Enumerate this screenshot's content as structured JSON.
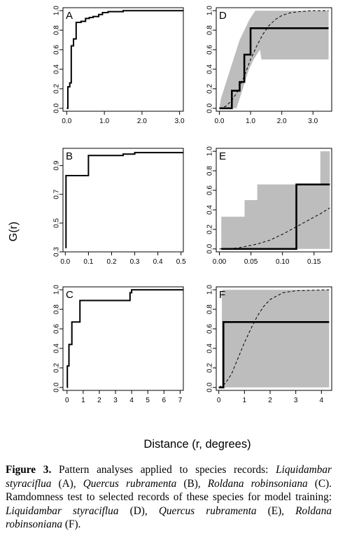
{
  "figure": {
    "ylabel": "G(r)",
    "xlabel": "Distance (r, degrees)"
  },
  "caption": {
    "label": "Figure 3.",
    "segments": [
      {
        "text": " Pattern analyses applied to species records: ",
        "italic": false
      },
      {
        "text": "Liquidambar styraciflua",
        "italic": true
      },
      {
        "text": " (A), ",
        "italic": false
      },
      {
        "text": "Quercus rubramenta",
        "italic": true
      },
      {
        "text": " (B), ",
        "italic": false
      },
      {
        "text": "Roldana robinsoniana",
        "italic": true
      },
      {
        "text": " (C). Ramdomness test to selected records of these species for model training: ",
        "italic": false
      },
      {
        "text": "Liquidambar styraciflua",
        "italic": true
      },
      {
        "text": " (D), ",
        "italic": false
      },
      {
        "text": "Quercus rubramenta",
        "italic": true
      },
      {
        "text": " (E), ",
        "italic": false
      },
      {
        "text": "Roldana robinsoniana",
        "italic": true
      },
      {
        "text": " (F).",
        "italic": false
      }
    ]
  },
  "chart_data": [
    {
      "panel": "A",
      "type": "line",
      "xlim": [
        -0.1,
        3.1
      ],
      "ylim": [
        -0.03,
        1.03
      ],
      "xticks": [
        0.0,
        1.0,
        2.0,
        3.0
      ],
      "xtick_labels": [
        "0.0",
        "1.0",
        "2.0",
        "3.0"
      ],
      "yticks": [
        0.0,
        0.2,
        0.4,
        0.6,
        0.8,
        1.0
      ],
      "ytick_labels": [
        "0.0",
        "0.2",
        "0.4",
        "0.6",
        "0.8",
        "1.0"
      ],
      "series": [
        {
          "style": "step",
          "points": [
            [
              0,
              0.0
            ],
            [
              0.03,
              0.22
            ],
            [
              0.08,
              0.26
            ],
            [
              0.12,
              0.64
            ],
            [
              0.18,
              0.71
            ],
            [
              0.25,
              0.88
            ],
            [
              0.38,
              0.89
            ],
            [
              0.5,
              0.92
            ],
            [
              0.6,
              0.93
            ],
            [
              0.7,
              0.94
            ],
            [
              0.85,
              0.96
            ],
            [
              0.95,
              0.98
            ],
            [
              1.1,
              0.99
            ],
            [
              1.5,
              1.0
            ],
            [
              3.1,
              1.0
            ]
          ]
        }
      ]
    },
    {
      "panel": "B",
      "type": "line",
      "xlim": [
        -0.01,
        0.51
      ],
      "ylim": [
        0.3,
        1.02
      ],
      "xticks": [
        0.0,
        0.1,
        0.2,
        0.3,
        0.4,
        0.5
      ],
      "xtick_labels": [
        "0.0",
        "0.1",
        "0.2",
        "0.3",
        "0.4",
        "0.5"
      ],
      "yticks": [
        0.3,
        0.5,
        0.7,
        0.9
      ],
      "ytick_labels": [
        "0.3",
        "0.5",
        "0.7",
        "0.9"
      ],
      "series": [
        {
          "style": "step",
          "points": [
            [
              0,
              0.33
            ],
            [
              0.003,
              0.83
            ],
            [
              0.1,
              0.97
            ],
            [
              0.2,
              0.97
            ],
            [
              0.25,
              0.98
            ],
            [
              0.3,
              0.99
            ],
            [
              0.51,
              0.99
            ]
          ]
        }
      ]
    },
    {
      "panel": "C",
      "type": "line",
      "xlim": [
        -0.25,
        7.2
      ],
      "ylim": [
        -0.03,
        1.03
      ],
      "xticks": [
        0,
        1,
        2,
        3,
        4,
        5,
        6,
        7
      ],
      "xtick_labels": [
        "0",
        "1",
        "2",
        "3",
        "4",
        "5",
        "6",
        "7"
      ],
      "yticks": [
        0.0,
        0.2,
        0.4,
        0.6,
        0.8,
        1.0
      ],
      "ytick_labels": [
        "0.0",
        "0.2",
        "0.4",
        "0.6",
        "0.8",
        "1.0"
      ],
      "series": [
        {
          "style": "step",
          "points": [
            [
              0,
              0.0
            ],
            [
              0.02,
              0.22
            ],
            [
              0.12,
              0.44
            ],
            [
              0.3,
              0.67
            ],
            [
              0.8,
              0.89
            ],
            [
              3.8,
              0.89
            ],
            [
              3.9,
              0.97
            ],
            [
              4.0,
              1.0
            ],
            [
              7.2,
              1.0
            ]
          ]
        }
      ]
    },
    {
      "panel": "D",
      "type": "area",
      "xlim": [
        -0.1,
        3.6
      ],
      "ylim": [
        -0.03,
        1.03
      ],
      "xticks": [
        0.0,
        1.0,
        2.0,
        3.0
      ],
      "xtick_labels": [
        "0.0",
        "1.0",
        "2.0",
        "3.0"
      ],
      "yticks": [
        0.0,
        0.2,
        0.4,
        0.6,
        0.8,
        1.0
      ],
      "ytick_labels": [
        "0.0",
        "0.2",
        "0.4",
        "0.6",
        "0.8",
        "1.0"
      ],
      "envelope": {
        "upper": [
          [
            0,
            0.0
          ],
          [
            0.05,
            0.1
          ],
          [
            0.15,
            0.2
          ],
          [
            0.25,
            0.3
          ],
          [
            0.35,
            0.4
          ],
          [
            0.45,
            0.5
          ],
          [
            0.55,
            0.6
          ],
          [
            0.65,
            0.7
          ],
          [
            0.8,
            0.8
          ],
          [
            0.95,
            0.9
          ],
          [
            1.15,
            1.0
          ],
          [
            3.5,
            1.0
          ]
        ],
        "lower": [
          [
            0,
            0.0
          ],
          [
            0.55,
            0.0
          ],
          [
            0.65,
            0.1
          ],
          [
            0.75,
            0.2
          ],
          [
            0.85,
            0.3
          ],
          [
            0.95,
            0.4
          ],
          [
            1.1,
            0.5
          ],
          [
            1.3,
            0.6
          ],
          [
            1.35,
            0.5
          ],
          [
            3.5,
            0.5
          ]
        ]
      },
      "series": [
        {
          "style": "step",
          "points": [
            [
              0,
              0.0
            ],
            [
              0.4,
              0.0
            ],
            [
              0.4,
              0.18
            ],
            [
              0.65,
              0.18
            ],
            [
              0.65,
              0.27
            ],
            [
              0.8,
              0.27
            ],
            [
              0.8,
              0.55
            ],
            [
              1.0,
              0.55
            ],
            [
              1.0,
              0.82
            ],
            [
              3.5,
              0.82
            ]
          ]
        },
        {
          "style": "dashed",
          "points": [
            [
              0,
              0.0
            ],
            [
              0.2,
              0.02
            ],
            [
              0.4,
              0.08
            ],
            [
              0.6,
              0.18
            ],
            [
              0.8,
              0.33
            ],
            [
              1.0,
              0.5
            ],
            [
              1.2,
              0.64
            ],
            [
              1.4,
              0.76
            ],
            [
              1.6,
              0.85
            ],
            [
              1.8,
              0.91
            ],
            [
              2.0,
              0.95
            ],
            [
              2.3,
              0.98
            ],
            [
              2.6,
              0.99
            ],
            [
              3.0,
              1.0
            ],
            [
              3.5,
              1.0
            ]
          ]
        }
      ]
    },
    {
      "panel": "E",
      "type": "area",
      "xlim": [
        -0.005,
        0.178
      ],
      "ylim": [
        -0.03,
        1.03
      ],
      "xticks": [
        0.0,
        0.05,
        0.1,
        0.15
      ],
      "xtick_labels": [
        "0.00",
        "0.05",
        "0.10",
        "0.15"
      ],
      "yticks": [
        0.0,
        0.2,
        0.4,
        0.6,
        0.8,
        1.0
      ],
      "ytick_labels": [
        "0.0",
        "0.2",
        "0.4",
        "0.6",
        "0.8",
        "1.0"
      ],
      "envelope": {
        "upper": [
          [
            0.003,
            0.33
          ],
          [
            0.04,
            0.33
          ],
          [
            0.04,
            0.5
          ],
          [
            0.06,
            0.5
          ],
          [
            0.06,
            0.66
          ],
          [
            0.16,
            0.66
          ],
          [
            0.16,
            1.0
          ],
          [
            0.175,
            1.0
          ]
        ],
        "lower": [
          [
            0.003,
            0.0
          ],
          [
            0.175,
            0.0
          ]
        ]
      },
      "series": [
        {
          "style": "step",
          "points": [
            [
              0.003,
              0.0
            ],
            [
              0.122,
              0.0
            ],
            [
              0.122,
              0.66
            ],
            [
              0.175,
              0.66
            ]
          ]
        },
        {
          "style": "dashed",
          "points": [
            [
              0,
              0.0
            ],
            [
              0.03,
              0.01
            ],
            [
              0.06,
              0.05
            ],
            [
              0.08,
              0.09
            ],
            [
              0.1,
              0.15
            ],
            [
              0.12,
              0.22
            ],
            [
              0.14,
              0.29
            ],
            [
              0.16,
              0.36
            ],
            [
              0.175,
              0.42
            ]
          ]
        }
      ]
    },
    {
      "panel": "F",
      "type": "area",
      "xlim": [
        -0.1,
        4.4
      ],
      "ylim": [
        -0.03,
        1.03
      ],
      "xticks": [
        0,
        1,
        2,
        3,
        4
      ],
      "xtick_labels": [
        "0",
        "1",
        "2",
        "3",
        "4"
      ],
      "yticks": [
        0.0,
        0.2,
        0.4,
        0.6,
        0.8,
        1.0
      ],
      "ytick_labels": [
        "0.0",
        "0.2",
        "0.4",
        "0.6",
        "0.8",
        "1.0"
      ],
      "envelope": {
        "upper": [
          [
            0.12,
            1.0
          ],
          [
            4.3,
            1.0
          ]
        ],
        "lower": [
          [
            0.12,
            0.0
          ],
          [
            4.3,
            0.0
          ]
        ]
      },
      "series": [
        {
          "style": "step",
          "points": [
            [
              0,
              0.0
            ],
            [
              0.18,
              0.0
            ],
            [
              0.18,
              0.67
            ],
            [
              4.3,
              0.67
            ]
          ]
        },
        {
          "style": "dashed",
          "points": [
            [
              0,
              0.0
            ],
            [
              0.25,
              0.04
            ],
            [
              0.5,
              0.14
            ],
            [
              0.75,
              0.3
            ],
            [
              1.0,
              0.46
            ],
            [
              1.25,
              0.6
            ],
            [
              1.5,
              0.73
            ],
            [
              1.75,
              0.83
            ],
            [
              2.0,
              0.9
            ],
            [
              2.5,
              0.97
            ],
            [
              3.0,
              0.99
            ],
            [
              4.3,
              1.0
            ]
          ]
        }
      ]
    }
  ]
}
